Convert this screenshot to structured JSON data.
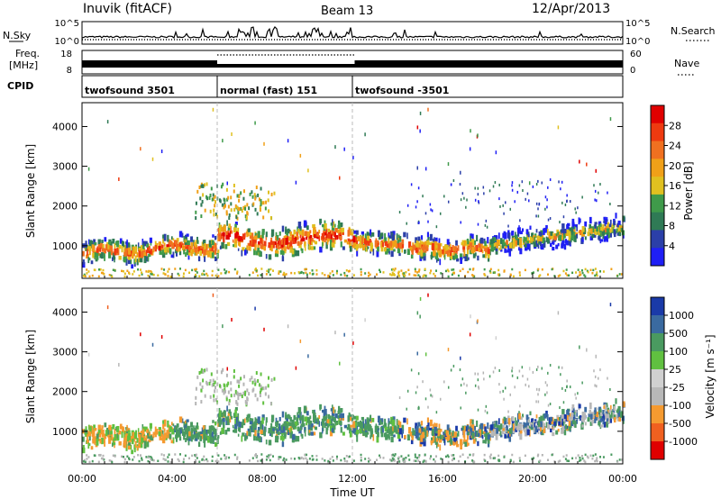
{
  "header": {
    "station": "Inuvik (fitACF)",
    "beam": "Beam 13",
    "date": "12/Apr/2013"
  },
  "left_labels": {
    "nsky": "N.Sky",
    "freq": "Freq.",
    "freq_unit": "[MHz]",
    "cpid": "CPID"
  },
  "right_labels": {
    "nsearch": "N.Search",
    "nave": "Nave"
  },
  "cpid_segments": [
    {
      "label": "twofsound 3501",
      "start_h": 0,
      "end_h": 6.0
    },
    {
      "label": "normal (fast) 151",
      "start_h": 6.0,
      "end_h": 12.0
    },
    {
      "label": "twofsound -3501",
      "start_h": 12.0,
      "end_h": 24.0
    }
  ],
  "colors": {
    "power_scale": [
      "#1f1ff5",
      "#2b3fa8",
      "#2f7a55",
      "#3f9a4a",
      "#e0c020",
      "#f0a018",
      "#f07020",
      "#ee3a10",
      "#e00000"
    ],
    "velocity_scale": [
      "#e00000",
      "#f06020",
      "#f59a30",
      "#b8b8b8",
      "#d0d0d0",
      "#60c040",
      "#4a9a60",
      "#3a6aa0",
      "#1a3aa8"
    ],
    "ground_scatter": "#b4b4b4"
  },
  "chart_data": [
    {
      "type": "line",
      "title": "N.Sky / N.Search",
      "ylabel": "N.Sky",
      "y_ticks_left": [
        "10^5",
        "10^0"
      ],
      "y_ticks_right": [
        "10^5",
        "10^0"
      ],
      "x_range": [
        0,
        24
      ]
    },
    {
      "type": "line",
      "title": "Freq. / Nave",
      "ylabel": "Freq. [MHz]",
      "y_ticks_left": [
        "18",
        "8"
      ],
      "y_ticks_right": [
        "60",
        "0"
      ],
      "ylim_left": [
        8,
        18
      ],
      "ylim_right": [
        0,
        60
      ],
      "x_range": [
        0,
        24
      ]
    },
    {
      "type": "heatmap",
      "title": "Power",
      "ylabel": "Slant Range [km]",
      "ylim": [
        180,
        4600
      ],
      "y_ticks": [
        1000,
        2000,
        3000,
        4000
      ],
      "colorbar_label": "Power [dB]",
      "colorbar_ticks": [
        "28",
        "24",
        "20",
        "16",
        "12",
        "8",
        "4"
      ],
      "x_range": [
        0,
        24
      ]
    },
    {
      "type": "heatmap",
      "title": "Velocity",
      "ylabel": "Slant Range [km]",
      "ylim": [
        180,
        4600
      ],
      "y_ticks": [
        1000,
        2000,
        3000,
        4000
      ],
      "colorbar_label": "Velocity [m s⁻¹]",
      "colorbar_ticks": [
        "1000",
        "500",
        "100",
        "25",
        "-25",
        "-100",
        "-500",
        "-1000"
      ],
      "x_range": [
        0,
        24
      ]
    }
  ],
  "x_axis": {
    "label": "Time UT",
    "ticks": [
      "00:00",
      "04:00",
      "08:00",
      "12:00",
      "16:00",
      "20:00",
      "00:00"
    ]
  }
}
